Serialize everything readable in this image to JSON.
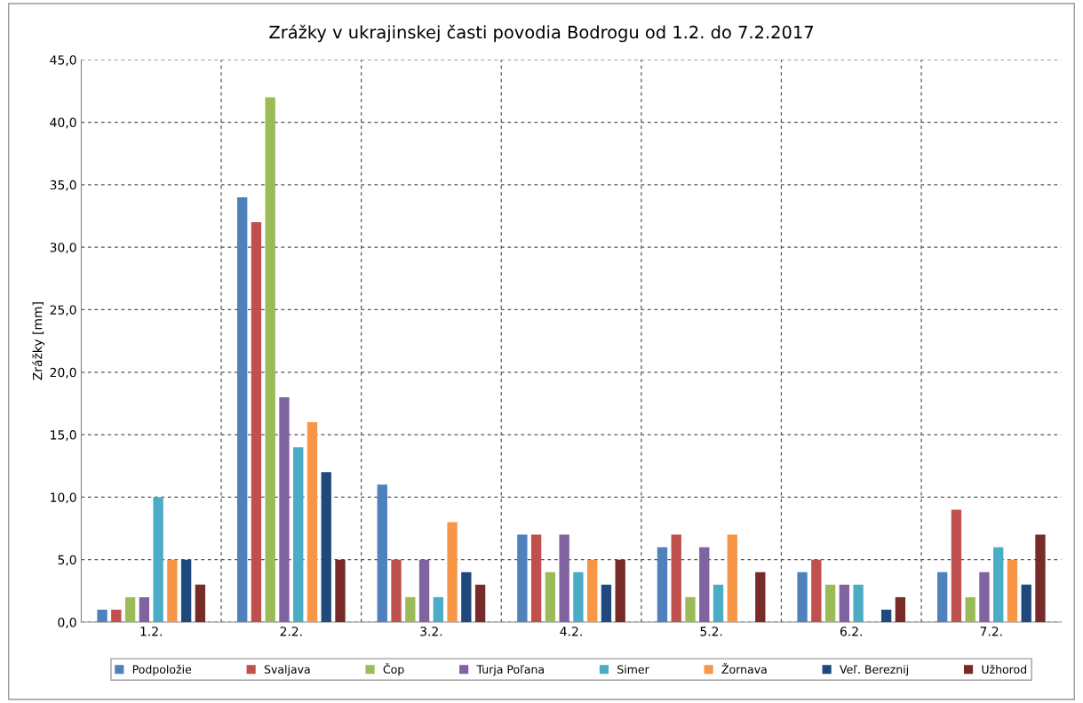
{
  "chart_data": {
    "type": "bar",
    "title": "Zrážky v ukrajinskej časti povodia Bodrogu od 1.2. do 7.2.2017",
    "ylabel": "Zrážky [mm]",
    "categories": [
      "1.2.",
      "2.2.",
      "3.2.",
      "4.2.",
      "5.2.",
      "6.2.",
      "7.2."
    ],
    "series": [
      {
        "name": "Podpoložie",
        "color": "#4f81bd",
        "values": [
          1,
          34,
          11,
          7,
          6,
          4,
          4
        ]
      },
      {
        "name": "Svaljava",
        "color": "#c0504d",
        "values": [
          1,
          32,
          5,
          7,
          7,
          5,
          9
        ]
      },
      {
        "name": "Čop",
        "color": "#9bbb59",
        "values": [
          2,
          42,
          2,
          4,
          2,
          3,
          2
        ]
      },
      {
        "name": "Turja Poľana",
        "color": "#8064a2",
        "values": [
          2,
          18,
          5,
          7,
          6,
          3,
          4
        ]
      },
      {
        "name": "Simer",
        "color": "#4bacc6",
        "values": [
          10,
          14,
          2,
          4,
          3,
          3,
          6
        ]
      },
      {
        "name": "Žornava",
        "color": "#f79646",
        "values": [
          5,
          16,
          8,
          5,
          7,
          0,
          5
        ]
      },
      {
        "name": "Veľ. Bereznij",
        "color": "#1f497d",
        "values": [
          5,
          12,
          4,
          3,
          0,
          1,
          3
        ]
      },
      {
        "name": "Užhorod",
        "color": "#772c2a",
        "values": [
          3,
          5,
          3,
          5,
          4,
          2,
          7
        ]
      }
    ],
    "ylim": [
      0,
      45
    ],
    "yticks": [
      {
        "value": 0,
        "label": "0,0"
      },
      {
        "value": 5,
        "label": "5,0"
      },
      {
        "value": 10,
        "label": "10,0"
      },
      {
        "value": 15,
        "label": "15,0"
      },
      {
        "value": 20,
        "label": "20,0"
      },
      {
        "value": 25,
        "label": "25,0"
      },
      {
        "value": 30,
        "label": "30,0"
      },
      {
        "value": 35,
        "label": "35,0"
      },
      {
        "value": 40,
        "label": "40,0"
      },
      {
        "value": 45,
        "label": "45,0"
      }
    ],
    "grid": true,
    "legend": "bottom"
  }
}
